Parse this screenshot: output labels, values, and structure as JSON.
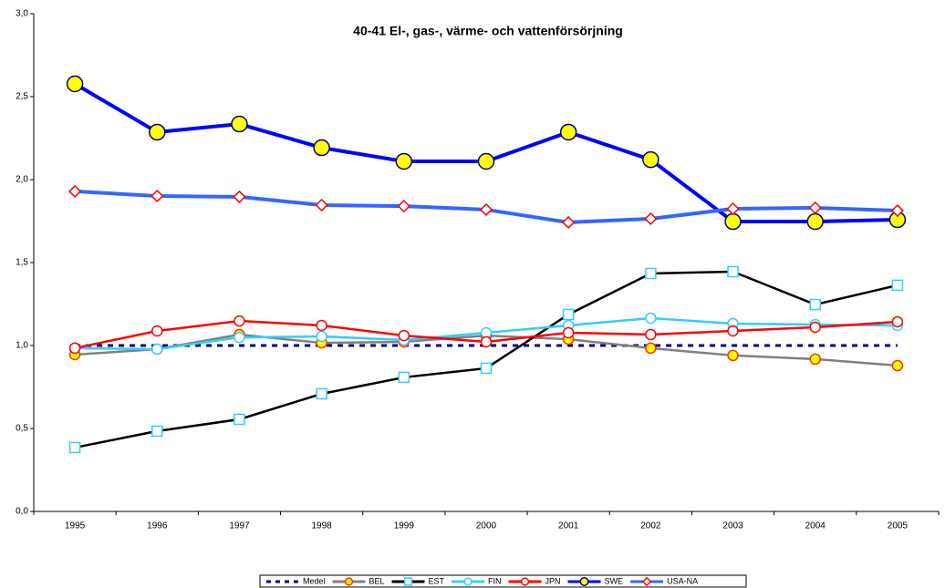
{
  "chart_data": {
    "type": "line",
    "title": "40-41 El-, gas-, värme- och vattenförsörjning",
    "categories": [
      "1995",
      "1996",
      "1997",
      "1998",
      "1999",
      "2000",
      "2001",
      "2002",
      "2003",
      "2004",
      "2005"
    ],
    "ylim": [
      0,
      3
    ],
    "yticks": [
      {
        "value": 0,
        "label": "0,0"
      },
      {
        "value": 0.5,
        "label": "0,5"
      },
      {
        "value": 1,
        "label": "1,0"
      },
      {
        "value": 1.5,
        "label": "1,5"
      },
      {
        "value": 2,
        "label": "2,0"
      },
      {
        "value": 2.5,
        "label": "2,5"
      },
      {
        "value": 3,
        "label": "3,0"
      }
    ],
    "grid": false,
    "legend": "bottom",
    "series": [
      {
        "name": "Medel",
        "color": "#000080",
        "dash": true,
        "marker": "none",
        "values": [
          1,
          1,
          1,
          1,
          1,
          1,
          1,
          1,
          1,
          1,
          1
        ]
      },
      {
        "name": "BEL",
        "color": "#808080",
        "marker": "circle",
        "marker_fill": "#ffff00",
        "marker_stroke": "#ff3300",
        "values": [
          0.945,
          0.978,
          1.066,
          1.016,
          1.022,
          1.06,
          1.038,
          0.984,
          0.94,
          0.918,
          0.879
        ]
      },
      {
        "name": "EST",
        "color": "#000000",
        "marker": "square",
        "marker_fill": "#ffffff",
        "marker_stroke": "#33ccff",
        "values": [
          0.385,
          0.484,
          0.555,
          0.709,
          0.808,
          0.863,
          1.187,
          1.434,
          1.445,
          1.247,
          1.363
        ]
      },
      {
        "name": "FIN",
        "color": "#33ccff",
        "marker": "circle",
        "marker_fill": "#ffffff",
        "marker_stroke": "#33ccff",
        "values": [
          0.984,
          0.978,
          1.049,
          1.055,
          1.033,
          1.077,
          1.121,
          1.165,
          1.132,
          1.126,
          1.121
        ]
      },
      {
        "name": "JPN",
        "color": "#ff0000",
        "marker": "circle",
        "marker_fill": "#ffffff",
        "marker_stroke": "#ff0000",
        "values": [
          0.984,
          1.088,
          1.148,
          1.121,
          1.06,
          1.022,
          1.077,
          1.066,
          1.088,
          1.11,
          1.143
        ]
      },
      {
        "name": "SWE",
        "color": "#0000ff",
        "marker": "bigcircle",
        "marker_fill": "#ffff00",
        "marker_stroke": "#000080",
        "values": [
          2.577,
          2.286,
          2.335,
          2.192,
          2.11,
          2.11,
          2.286,
          2.12,
          1.747,
          1.747,
          1.758
        ]
      },
      {
        "name": "USA-NA",
        "color": "#3366ff",
        "marker": "diamond",
        "marker_fill": "#ffffff",
        "marker_stroke": "#ff0000",
        "values": [
          1.929,
          1.901,
          1.896,
          1.846,
          1.84,
          1.819,
          1.742,
          1.764,
          1.824,
          1.83,
          1.813
        ]
      }
    ]
  }
}
